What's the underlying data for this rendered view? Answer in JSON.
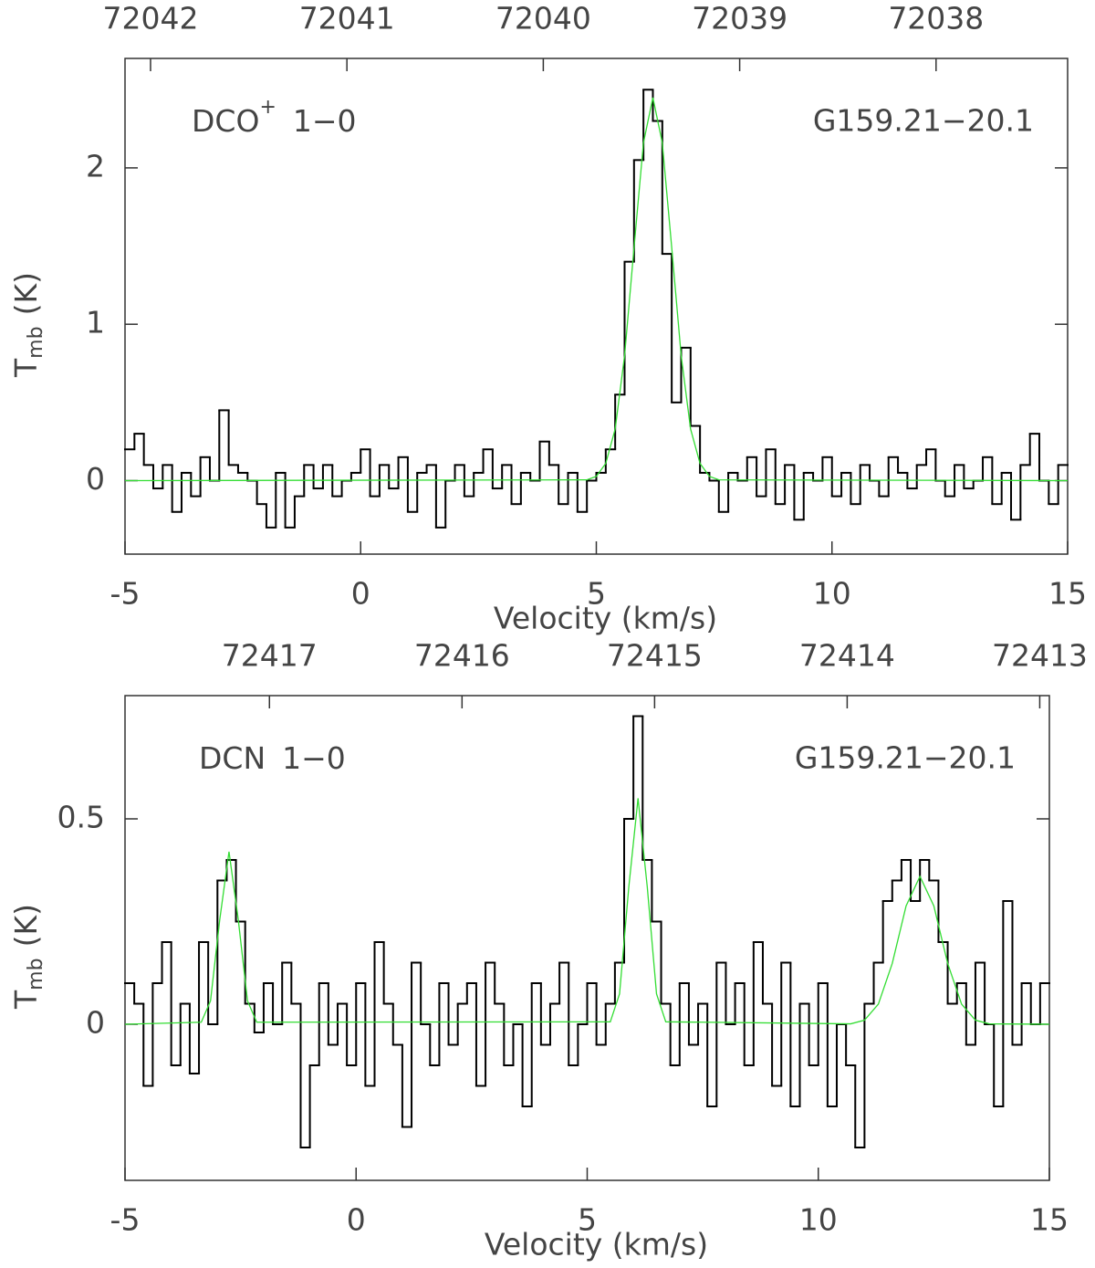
{
  "chart_data": [
    {
      "type": "line",
      "line": "DCO",
      "line_sup": "+",
      "transition": "1−0",
      "source": "G159.21−20.1",
      "xlabel": "Velocity (km/s)",
      "ylabel": {
        "text": "T",
        "sub": "mb",
        "unit": "(K)"
      },
      "xlim": [
        -5,
        15
      ],
      "xticks": [
        -5,
        0,
        5,
        10,
        15
      ],
      "x2lim": [
        72042.13,
        72037.33
      ],
      "x2ticks": [
        72042,
        72041,
        72040,
        72039,
        72038
      ],
      "ylim": [
        -0.47,
        2.7
      ],
      "yticks": [
        0,
        1,
        2
      ],
      "series": [
        {
          "style": "steps",
          "color": "#000000",
          "x": [
            -4.9,
            -4.7,
            -4.5,
            -4.3,
            -4.1,
            -3.9,
            -3.7,
            -3.5,
            -3.3,
            -3.1,
            -2.9,
            -2.7,
            -2.5,
            -2.3,
            -2.1,
            -1.9,
            -1.7,
            -1.5,
            -1.3,
            -1.1,
            -0.9,
            -0.7,
            -0.5,
            -0.3,
            -0.1,
            0.1,
            0.3,
            0.5,
            0.7,
            0.9,
            1.1,
            1.3,
            1.5,
            1.7,
            1.9,
            2.1,
            2.3,
            2.5,
            2.7,
            2.9,
            3.1,
            3.3,
            3.5,
            3.7,
            3.9,
            4.1,
            4.3,
            4.5,
            4.7,
            4.9,
            5.1,
            5.3,
            5.5,
            5.7,
            5.9,
            6.1,
            6.3,
            6.5,
            6.7,
            6.9,
            7.1,
            7.3,
            7.5,
            7.7,
            7.9,
            8.1,
            8.3,
            8.5,
            8.7,
            8.9,
            9.1,
            9.3,
            9.5,
            9.7,
            9.9,
            10.1,
            10.3,
            10.5,
            10.7,
            10.9,
            11.1,
            11.3,
            11.5,
            11.7,
            11.9,
            12.1,
            12.3,
            12.5,
            12.7,
            12.9,
            13.1,
            13.3,
            13.5,
            13.7,
            13.9,
            14.1,
            14.3,
            14.5,
            14.7,
            14.9
          ],
          "values": [
            0.2,
            0.3,
            0.1,
            -0.05,
            0.1,
            -0.2,
            0.05,
            -0.1,
            0.15,
            0.0,
            0.45,
            0.1,
            0.05,
            0.0,
            -0.15,
            -0.3,
            0.05,
            -0.3,
            -0.1,
            0.1,
            -0.05,
            0.1,
            -0.1,
            0.0,
            0.05,
            0.2,
            -0.1,
            0.1,
            -0.05,
            0.15,
            -0.2,
            0.05,
            0.1,
            -0.3,
            0.0,
            0.1,
            -0.1,
            0.05,
            0.2,
            -0.05,
            0.1,
            -0.15,
            0.05,
            0.0,
            0.25,
            0.1,
            -0.15,
            0.05,
            -0.2,
            0.0,
            0.05,
            0.2,
            0.55,
            1.4,
            2.05,
            2.5,
            2.3,
            1.45,
            0.5,
            0.85,
            0.35,
            0.05,
            0.0,
            -0.2,
            0.05,
            0.0,
            0.15,
            -0.1,
            0.2,
            -0.15,
            0.1,
            -0.25,
            0.05,
            0.0,
            0.15,
            -0.1,
            0.05,
            -0.15,
            0.1,
            0.0,
            -0.1,
            0.15,
            0.05,
            -0.05,
            0.1,
            0.2,
            0.0,
            -0.1,
            0.1,
            -0.05,
            0.0,
            0.15,
            -0.15,
            0.05,
            -0.25,
            0.1,
            0.3,
            0.0,
            -0.15,
            0.1
          ]
        },
        {
          "style": "line",
          "color": "#33dd33",
          "x": [
            -5,
            4.8,
            5.0,
            5.2,
            5.4,
            5.6,
            5.8,
            6.0,
            6.2,
            6.4,
            6.6,
            6.8,
            7.0,
            7.2,
            7.4,
            7.6,
            15
          ],
          "values": [
            0,
            0.005,
            0.027,
            0.11,
            0.33,
            0.8,
            1.49,
            2.16,
            2.45,
            2.16,
            1.49,
            0.8,
            0.33,
            0.11,
            0.027,
            0.005,
            0
          ]
        }
      ]
    },
    {
      "type": "line",
      "line": "DCN",
      "transition": "1−0",
      "source": "G159.21−20.1",
      "xlabel": "Velocity (km/s)",
      "ylabel": {
        "text": "T",
        "sub": "mb",
        "unit": "(K)"
      },
      "xlim": [
        -5,
        15
      ],
      "xticks": [
        -5,
        0,
        5,
        10,
        15
      ],
      "x2lim": [
        72417.75,
        72412.95
      ],
      "x2ticks": [
        72417,
        72416,
        72415,
        72414,
        72413
      ],
      "ylim": [
        -0.38,
        0.8
      ],
      "yticks": [
        0,
        0.5
      ],
      "series": [
        {
          "style": "steps",
          "color": "#000000",
          "x": [
            -4.9,
            -4.7,
            -4.5,
            -4.3,
            -4.1,
            -3.9,
            -3.7,
            -3.5,
            -3.3,
            -3.1,
            -2.9,
            -2.7,
            -2.5,
            -2.3,
            -2.1,
            -1.9,
            -1.7,
            -1.5,
            -1.3,
            -1.1,
            -0.9,
            -0.7,
            -0.5,
            -0.3,
            -0.1,
            0.1,
            0.3,
            0.5,
            0.7,
            0.9,
            1.1,
            1.3,
            1.5,
            1.7,
            1.9,
            2.1,
            2.3,
            2.5,
            2.7,
            2.9,
            3.1,
            3.3,
            3.5,
            3.7,
            3.9,
            4.1,
            4.3,
            4.5,
            4.7,
            4.9,
            5.1,
            5.3,
            5.5,
            5.7,
            5.9,
            6.1,
            6.3,
            6.5,
            6.7,
            6.9,
            7.1,
            7.3,
            7.5,
            7.7,
            7.9,
            8.1,
            8.3,
            8.5,
            8.7,
            8.9,
            9.1,
            9.3,
            9.5,
            9.7,
            9.9,
            10.1,
            10.3,
            10.5,
            10.7,
            10.9,
            11.1,
            11.3,
            11.5,
            11.7,
            11.9,
            12.1,
            12.3,
            12.5,
            12.7,
            12.9,
            13.1,
            13.3,
            13.5,
            13.7,
            13.9,
            14.1,
            14.3,
            14.5,
            14.7,
            14.9
          ],
          "values": [
            0.1,
            0.05,
            -0.15,
            0.1,
            0.2,
            -0.1,
            0.05,
            -0.12,
            0.2,
            0.0,
            0.35,
            0.4,
            0.25,
            0.05,
            -0.02,
            0.1,
            0.0,
            0.15,
            0.05,
            -0.3,
            -0.1,
            0.1,
            -0.05,
            0.05,
            -0.1,
            0.1,
            -0.15,
            0.2,
            0.05,
            -0.05,
            -0.25,
            0.15,
            0.0,
            -0.1,
            0.1,
            -0.05,
            0.05,
            0.1,
            -0.15,
            0.15,
            0.05,
            -0.1,
            0.0,
            -0.2,
            0.1,
            -0.05,
            0.05,
            0.15,
            -0.1,
            0.0,
            0.1,
            -0.05,
            0.05,
            0.15,
            0.5,
            0.75,
            0.4,
            0.25,
            0.05,
            -0.1,
            0.1,
            -0.05,
            0.05,
            -0.2,
            0.15,
            0.0,
            0.1,
            -0.1,
            0.2,
            0.05,
            -0.15,
            0.15,
            -0.2,
            0.05,
            -0.1,
            0.1,
            -0.2,
            0.0,
            -0.1,
            -0.3,
            0.05,
            0.15,
            0.3,
            0.35,
            0.4,
            0.3,
            0.4,
            0.35,
            0.2,
            0.05,
            0.1,
            -0.05,
            0.15,
            0.0,
            -0.2,
            0.3,
            -0.05,
            0.1,
            0.0,
            0.1
          ]
        },
        {
          "style": "line",
          "color": "#33dd33",
          "x": [
            -5,
            -3.35,
            -3.15,
            -2.95,
            -2.75,
            -2.55,
            -2.35,
            -2.15,
            5.5,
            5.7,
            5.9,
            6.1,
            6.3,
            6.5,
            6.7,
            10.7,
            11.0,
            11.3,
            11.6,
            11.9,
            12.2,
            12.5,
            12.8,
            13.1,
            13.4,
            13.7,
            15
          ],
          "values": [
            0,
            0.005,
            0.057,
            0.255,
            0.42,
            0.255,
            0.057,
            0.005,
            0.006,
            0.074,
            0.334,
            0.55,
            0.334,
            0.074,
            0.006,
            0.001,
            0.01,
            0.049,
            0.148,
            0.288,
            0.36,
            0.288,
            0.148,
            0.049,
            0.01,
            0.001,
            0
          ]
        }
      ]
    }
  ]
}
